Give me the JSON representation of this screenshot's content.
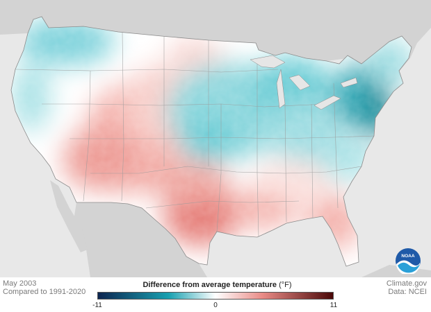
{
  "map": {
    "legend_title": "Difference from average temperature",
    "legend_unit": "(°F)",
    "scale_min": "-11",
    "scale_mid": "0",
    "scale_max": "11",
    "colors": {
      "cold_dark": "#0d2550",
      "cold_mid": "#18a0b0",
      "neutral": "#ffffff",
      "warm_mid": "#e98b86",
      "warm_dark": "#4a0808",
      "land_outside": "#cfcfcf",
      "ocean": "#e6e6e6"
    }
  },
  "footer": {
    "date": "May 2003",
    "baseline": "Compared to 1991-2020",
    "source_site": "Climate.gov",
    "source_data": "Data: NCEI"
  },
  "logo": {
    "text": "NOAA"
  }
}
